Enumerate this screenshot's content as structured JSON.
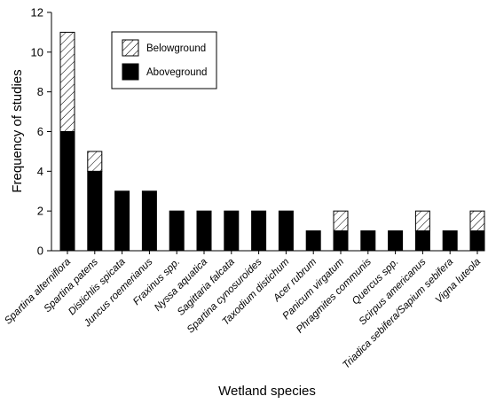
{
  "chart_data": {
    "type": "bar",
    "stacked": true,
    "title": "",
    "xlabel": "Wetland species",
    "ylabel": "Frequency of studies",
    "ylim": [
      0,
      12
    ],
    "yticks": [
      0,
      2,
      4,
      6,
      8,
      10,
      12
    ],
    "grid": false,
    "legend_position": "top-center",
    "categories": [
      "Spartina alterniflora",
      "Spartina patens",
      "Distichlis spicata",
      "Juncus roemerianus",
      "Fraxinus spp.",
      "Nyssa aquatica",
      "Sagittaria falcata",
      "Spartina cynosuroides",
      "Taxodium distichum",
      "Acer rubrum",
      "Panicum virgatum",
      "Phragmites communis",
      "Quercus spp.",
      "Scirpus americanus",
      "Triadica sebifera/Sapium sebifera",
      "Vigna luteola"
    ],
    "series": [
      {
        "name": "Aboveground",
        "fill": "solid",
        "color": "#000000",
        "values": [
          6,
          4,
          3,
          3,
          2,
          2,
          2,
          2,
          2,
          1,
          1,
          1,
          1,
          1,
          1,
          1
        ]
      },
      {
        "name": "Belowground",
        "fill": "hatched",
        "color": "#000000",
        "values": [
          5,
          1,
          0,
          0,
          0,
          0,
          0,
          0,
          0,
          0,
          1,
          0,
          0,
          1,
          0,
          1
        ]
      }
    ],
    "legend": [
      "Belowground",
      "Aboveground"
    ]
  }
}
